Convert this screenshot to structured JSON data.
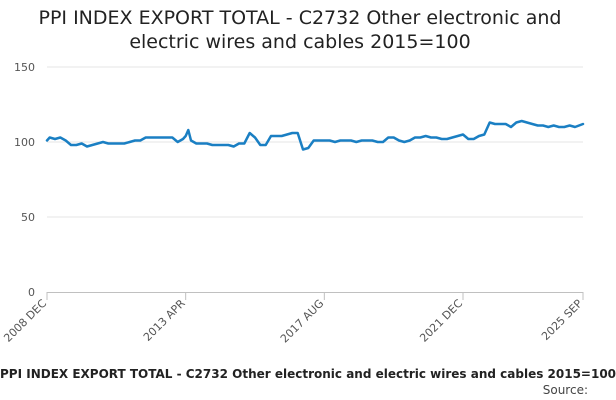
{
  "chart_data": {
    "type": "line",
    "title": "PPI INDEX EXPORT TOTAL - C2732 Other electronic and electric wires and cables 2015=100",
    "title_lines": [
      "PPI INDEX EXPORT TOTAL - C2732 Other electronic and",
      "electric wires and cables 2015=100"
    ],
    "xlabel": "",
    "ylabel": "",
    "ylim": [
      0,
      150
    ],
    "y_ticks": [
      0,
      50,
      100,
      150
    ],
    "x_ticks": [
      "2008 DEC",
      "2013 APR",
      "2017 AUG",
      "2021 DEC",
      "2025 SEP"
    ],
    "x_range": [
      "2008-12",
      "2025-09"
    ],
    "grid": true,
    "line_color": "#1a7fc3",
    "x_points": [
      "2008-12",
      "2009-01",
      "2009-03",
      "2009-05",
      "2009-07",
      "2009-09",
      "2009-11",
      "2010-01",
      "2010-03",
      "2010-05",
      "2010-07",
      "2010-09",
      "2010-11",
      "2011-01",
      "2011-03",
      "2011-05",
      "2011-07",
      "2011-09",
      "2011-11",
      "2012-01",
      "2012-03",
      "2012-05",
      "2012-07",
      "2012-09",
      "2012-11",
      "2013-01",
      "2013-03",
      "2013-04",
      "2013-05",
      "2013-06",
      "2013-08",
      "2013-10",
      "2013-12",
      "2014-02",
      "2014-04",
      "2014-06",
      "2014-08",
      "2014-10",
      "2014-12",
      "2015-02",
      "2015-04",
      "2015-06",
      "2015-08",
      "2015-10",
      "2015-12",
      "2016-02",
      "2016-04",
      "2016-06",
      "2016-08",
      "2016-10",
      "2016-12",
      "2017-02",
      "2017-04",
      "2017-06",
      "2017-08",
      "2017-10",
      "2017-12",
      "2018-02",
      "2018-04",
      "2018-06",
      "2018-08",
      "2018-10",
      "2018-12",
      "2019-02",
      "2019-04",
      "2019-06",
      "2019-08",
      "2019-10",
      "2019-12",
      "2020-02",
      "2020-04",
      "2020-06",
      "2020-08",
      "2020-10",
      "2020-12",
      "2021-02",
      "2021-04",
      "2021-06",
      "2021-08",
      "2021-10",
      "2021-12",
      "2022-02",
      "2022-04",
      "2022-06",
      "2022-08",
      "2022-10",
      "2022-12",
      "2023-02",
      "2023-04",
      "2023-06",
      "2023-08",
      "2023-10",
      "2023-12",
      "2024-02",
      "2024-04",
      "2024-06",
      "2024-08",
      "2024-10",
      "2024-12",
      "2025-02",
      "2025-04",
      "2025-06",
      "2025-09"
    ],
    "series": [
      {
        "values": [
          101,
          103,
          102,
          103,
          101,
          98,
          98,
          99,
          97,
          98,
          99,
          100,
          99,
          99,
          99,
          99,
          100,
          101,
          101,
          103,
          103,
          103,
          103,
          103,
          103,
          100,
          102,
          104,
          108,
          101,
          99,
          99,
          99,
          98,
          98,
          98,
          98,
          97,
          99,
          99,
          106,
          103,
          98,
          98,
          104,
          104,
          104,
          105,
          106,
          106,
          95,
          96,
          101,
          101,
          101,
          101,
          100,
          101,
          101,
          101,
          100,
          101,
          101,
          101,
          100,
          100,
          103,
          103,
          101,
          100,
          101,
          103,
          103,
          104,
          103,
          103,
          102,
          102,
          103,
          104,
          105,
          102,
          102,
          104,
          105,
          113,
          112,
          112,
          112,
          110,
          113,
          114,
          113,
          112,
          111,
          111,
          110,
          111,
          110,
          110,
          111,
          110,
          112
        ]
      }
    ]
  },
  "footer": {
    "title": "PPI INDEX EXPORT TOTAL - C2732 Other electronic and electric wires and cables 2015=100",
    "source_label": "Source:"
  }
}
